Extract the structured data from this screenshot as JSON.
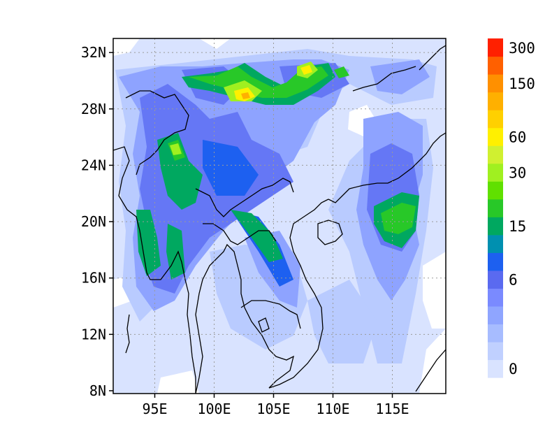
{
  "map": {
    "lat_labels": [
      "32N",
      "28N",
      "24N",
      "20N",
      "16N",
      "12N",
      "8N"
    ],
    "lon_labels": [
      "95E",
      "100E",
      "105E",
      "110E",
      "115E"
    ],
    "lat_values": [
      32,
      28,
      24,
      20,
      16,
      12,
      8
    ],
    "lon_values": [
      95,
      100,
      105,
      110,
      115
    ],
    "extent": {
      "lon": [
        91.5,
        119.5
      ],
      "lat": [
        7.8,
        33
      ]
    },
    "grid": "dotted",
    "coastline": "black",
    "colorbar": {
      "labels": [
        "300",
        "150",
        "60",
        "30",
        "15",
        "6",
        "0"
      ],
      "label_levels": [
        18,
        16,
        13,
        11,
        8,
        5,
        0
      ],
      "colors": [
        "#d9e3ff",
        "#c0d0ff",
        "#a7bcff",
        "#8fa5ff",
        "#7a8aff",
        "#5a6af0",
        "#1d60f0",
        "#0090b0",
        "#00a860",
        "#28c828",
        "#60e000",
        "#a0f020",
        "#d0f030",
        "#fff000",
        "#ffd000",
        "#ffb000",
        "#ff9000",
        "#ff6000",
        "#ff2000"
      ]
    }
  }
}
